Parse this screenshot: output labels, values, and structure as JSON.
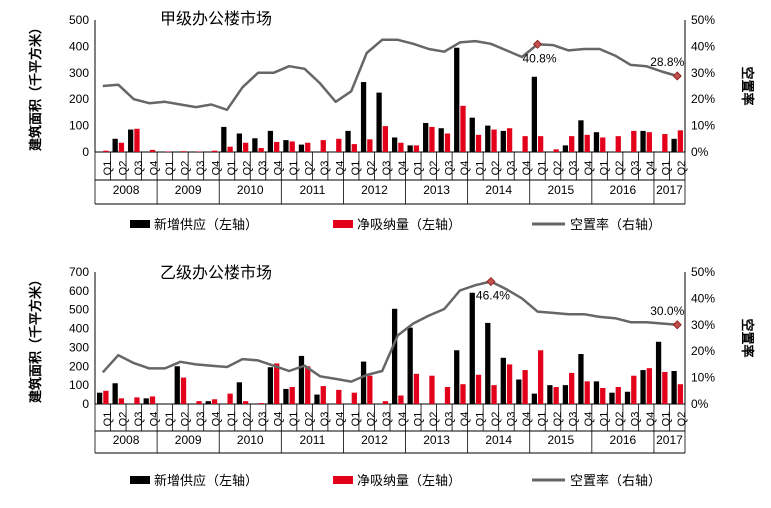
{
  "chart_data": [
    {
      "type": "bar",
      "title": "甲级办公楼市场",
      "ylabel": "建筑面积（千平方米）",
      "ylabel_right": "空置率",
      "ylim": [
        0,
        500
      ],
      "ylim_right": [
        0,
        50
      ],
      "yticks": [
        "0",
        "100",
        "200",
        "300",
        "400",
        "500"
      ],
      "yticks_right": [
        "0%",
        "10%",
        "20%",
        "30%",
        "40%",
        "50%"
      ],
      "quarters": [
        "Q1",
        "Q2",
        "Q3",
        "Q4",
        "Q1",
        "Q2",
        "Q3",
        "Q4",
        "Q1",
        "Q2",
        "Q3",
        "Q4",
        "Q1",
        "Q2",
        "Q3",
        "Q4",
        "Q1",
        "Q2",
        "Q3",
        "Q4",
        "Q1",
        "Q2",
        "Q3",
        "Q4",
        "Q1",
        "Q2",
        "Q3",
        "Q4",
        "Q1",
        "Q2",
        "Q3",
        "Q4",
        "Q1",
        "Q2",
        "Q3",
        "Q4",
        "Q1",
        "Q2"
      ],
      "years": [
        "2008",
        "2009",
        "2010",
        "2011",
        "2012",
        "2013",
        "2014",
        "2015",
        "2016",
        "2017"
      ],
      "year_spans": [
        4,
        4,
        4,
        4,
        4,
        4,
        4,
        4,
        4,
        2
      ],
      "series": [
        {
          "name": "新增供应（左轴）",
          "axis": "left",
          "color": "#000000",
          "values": [
            0,
            50,
            85,
            0,
            0,
            0,
            0,
            0,
            95,
            70,
            52,
            80,
            45,
            28,
            0,
            0,
            80,
            265,
            225,
            55,
            25,
            110,
            90,
            395,
            130,
            100,
            80,
            0,
            285,
            0,
            25,
            120,
            75,
            0,
            0,
            80,
            0,
            50
          ]
        },
        {
          "name": "净吸纳量（左轴）",
          "axis": "left",
          "color": "#e2001a",
          "values": [
            5,
            35,
            88,
            8,
            2,
            3,
            2,
            5,
            20,
            35,
            15,
            38,
            40,
            35,
            45,
            50,
            30,
            48,
            98,
            35,
            25,
            95,
            70,
            175,
            65,
            85,
            90,
            60,
            60,
            10,
            60,
            65,
            55,
            60,
            80,
            75,
            68,
            82
          ]
        },
        {
          "name": "空置率（右轴）",
          "axis": "right",
          "color": "#666666",
          "values": [
            25.0,
            25.5,
            20.0,
            18.5,
            19.0,
            18.0,
            17.0,
            18.0,
            16.0,
            24.5,
            30.0,
            30.0,
            32.5,
            31.5,
            26.0,
            19.0,
            23.0,
            37.5,
            42.5,
            42.5,
            41.0,
            39.0,
            38.0,
            41.5,
            42.0,
            41.0,
            38.5,
            36.0,
            40.8,
            40.5,
            38.5,
            39.0,
            39.0,
            36.5,
            33.0,
            32.5,
            30.5,
            28.8
          ],
          "annotations": [
            {
              "index": 28,
              "label": "40.8%"
            },
            {
              "index": 37,
              "label": "28.8%"
            }
          ]
        }
      ],
      "legend": [
        "新增供应（左轴）",
        "净吸纳量（左轴）",
        "空置率（右轴）"
      ],
      "legend_position": "bottom"
    },
    {
      "type": "bar",
      "title": "乙级办公楼市场",
      "ylabel": "建筑面积（千平方米）",
      "ylabel_right": "空置率",
      "ylim": [
        0,
        700
      ],
      "ylim_right": [
        0,
        50
      ],
      "yticks": [
        "0",
        "100",
        "200",
        "300",
        "400",
        "500",
        "600",
        "700"
      ],
      "yticks_right": [
        "0%",
        "10%",
        "20%",
        "30%",
        "40%",
        "50%"
      ],
      "quarters": [
        "Q1",
        "Q2",
        "Q3",
        "Q4",
        "Q1",
        "Q2",
        "Q3",
        "Q4",
        "Q1",
        "Q2",
        "Q3",
        "Q4",
        "Q1",
        "Q2",
        "Q3",
        "Q4",
        "Q1",
        "Q2",
        "Q3",
        "Q4",
        "Q1",
        "Q2",
        "Q3",
        "Q4",
        "Q1",
        "Q2",
        "Q3",
        "Q4",
        "Q1",
        "Q2",
        "Q3",
        "Q4",
        "Q1",
        "Q2",
        "Q3",
        "Q4",
        "Q1",
        "Q2"
      ],
      "years": [
        "2008",
        "2009",
        "2010",
        "2011",
        "2012",
        "2013",
        "2014",
        "2015",
        "2016",
        "2017"
      ],
      "year_spans": [
        4,
        4,
        4,
        4,
        4,
        4,
        4,
        4,
        4,
        2
      ],
      "series": [
        {
          "name": "新增供应（左轴）",
          "axis": "left",
          "color": "#000000",
          "values": [
            60,
            110,
            0,
            30,
            0,
            200,
            0,
            15,
            0,
            115,
            0,
            195,
            80,
            255,
            50,
            0,
            0,
            225,
            0,
            505,
            405,
            0,
            0,
            285,
            590,
            430,
            245,
            130,
            55,
            100,
            100,
            265,
            120,
            60,
            65,
            180,
            330,
            175
          ]
        },
        {
          "name": "净吸纳量（左轴）",
          "axis": "left",
          "color": "#e2001a",
          "values": [
            70,
            30,
            35,
            40,
            0,
            140,
            15,
            25,
            55,
            15,
            5,
            215,
            90,
            200,
            95,
            75,
            60,
            150,
            15,
            45,
            160,
            150,
            90,
            105,
            155,
            100,
            210,
            180,
            285,
            90,
            165,
            120,
            85,
            90,
            150,
            190,
            170,
            105
          ]
        },
        {
          "name": "空置率（右轴）",
          "axis": "right",
          "color": "#666666",
          "values": [
            12.0,
            18.5,
            15.5,
            13.5,
            13.5,
            16.0,
            15.0,
            14.5,
            14.0,
            17.0,
            16.5,
            14.5,
            12.5,
            14.5,
            10.5,
            9.5,
            8.5,
            11.0,
            12.5,
            26.0,
            30.5,
            33.5,
            36.0,
            43.0,
            45.0,
            46.4,
            43.5,
            40.0,
            35.0,
            34.5,
            34.0,
            34.0,
            33.0,
            32.5,
            31.0,
            31.0,
            30.5,
            30.0
          ],
          "annotations": [
            {
              "index": 25,
              "label": "46.4%"
            },
            {
              "index": 37,
              "label": "30.0%"
            }
          ]
        }
      ],
      "legend": [
        "新增供应（左轴）",
        "净吸纳量（左轴）",
        "空置率（右轴）"
      ],
      "legend_position": "bottom"
    }
  ]
}
